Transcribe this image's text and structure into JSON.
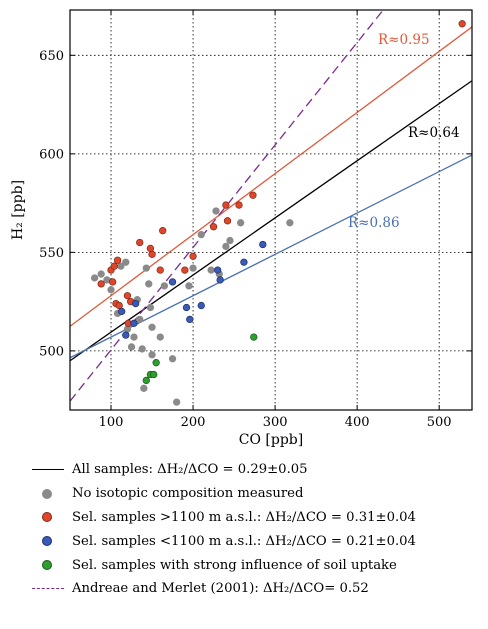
{
  "chart_data": {
    "type": "scatter",
    "xlabel": "CO [ppb]",
    "ylabel": "H₂ [ppb]",
    "xlim": [
      50,
      540
    ],
    "ylim": [
      470,
      673
    ],
    "xticks": [
      100,
      200,
      300,
      400,
      500
    ],
    "yticks": [
      500,
      550,
      600,
      650
    ],
    "grid": "dotted",
    "series": [
      {
        "name": "No isotopic composition measured",
        "color": "#8a8a8a",
        "points": [
          [
            80,
            537
          ],
          [
            88,
            539
          ],
          [
            95,
            536
          ],
          [
            100,
            531
          ],
          [
            108,
            519
          ],
          [
            112,
            543
          ],
          [
            118,
            545
          ],
          [
            120,
            511
          ],
          [
            125,
            502
          ],
          [
            128,
            507
          ],
          [
            132,
            526
          ],
          [
            135,
            516
          ],
          [
            138,
            501
          ],
          [
            140,
            481
          ],
          [
            143,
            542
          ],
          [
            146,
            534
          ],
          [
            148,
            522
          ],
          [
            150,
            498
          ],
          [
            152,
            488
          ],
          [
            160,
            507
          ],
          [
            165,
            533
          ],
          [
            180,
            474
          ],
          [
            195,
            533
          ],
          [
            200,
            542
          ],
          [
            210,
            559
          ],
          [
            222,
            541
          ],
          [
            228,
            571
          ],
          [
            232,
            539
          ],
          [
            240,
            553
          ],
          [
            245,
            556
          ],
          [
            258,
            565
          ],
          [
            318,
            565
          ],
          [
            175,
            496
          ],
          [
            150,
            512
          ]
        ]
      },
      {
        "name": "Sel. samples >1100 m a.s.l.: ΔH₂/ΔCO = 0.31±0.04",
        "color": "#e2462a",
        "points": [
          [
            88,
            534
          ],
          [
            100,
            541
          ],
          [
            102,
            535
          ],
          [
            104,
            543
          ],
          [
            106,
            524
          ],
          [
            108,
            546
          ],
          [
            110,
            523
          ],
          [
            120,
            528
          ],
          [
            121,
            514
          ],
          [
            124,
            525
          ],
          [
            135,
            555
          ],
          [
            148,
            552
          ],
          [
            150,
            549
          ],
          [
            160,
            541
          ],
          [
            163,
            561
          ],
          [
            190,
            541
          ],
          [
            200,
            548
          ],
          [
            225,
            563
          ],
          [
            240,
            574
          ],
          [
            242,
            566
          ],
          [
            256,
            574
          ],
          [
            273,
            579
          ],
          [
            528,
            666
          ]
        ]
      },
      {
        "name": "Sel. samples <1100 m a.s.l.: ΔH₂/ΔCO = 0.21±0.04",
        "color": "#3a5ab8",
        "points": [
          [
            113,
            520
          ],
          [
            118,
            508
          ],
          [
            128,
            514
          ],
          [
            130,
            524
          ],
          [
            175,
            535
          ],
          [
            192,
            522
          ],
          [
            196,
            516
          ],
          [
            210,
            523
          ],
          [
            230,
            541
          ],
          [
            233,
            536
          ],
          [
            262,
            545
          ],
          [
            285,
            554
          ]
        ]
      },
      {
        "name": "Sel. samples with strong influence of soil uptake",
        "color": "#2e9e2e",
        "points": [
          [
            143,
            485
          ],
          [
            148,
            488
          ],
          [
            152,
            488
          ],
          [
            155,
            494
          ],
          [
            274,
            507
          ]
        ]
      }
    ],
    "fits": [
      {
        "name": "All samples: ΔH₂/ΔCO = 0.29±0.05",
        "color": "#000000",
        "style": "solid",
        "slope": 0.29,
        "intercept": 480.5,
        "label": "R≈0.64"
      },
      {
        "name": "Sel. samples >1100 m a.s.l.",
        "color": "#e05a3a",
        "style": "solid",
        "slope": 0.31,
        "intercept": 497.0,
        "label": "R≈0.95"
      },
      {
        "name": "Sel. samples <1100 m a.s.l.",
        "color": "#4a6fb5",
        "style": "solid",
        "slope": 0.21,
        "intercept": 486.0,
        "label": "R≈0.86"
      },
      {
        "name": "Andreae and Merlet (2001): ΔH₂/ΔCO= 0.52",
        "color": "#7b2c8c",
        "style": "dashed",
        "slope": 0.52,
        "intercept": 448.5,
        "label": ""
      }
    ]
  },
  "legend": {
    "all_samples": "All samples: ΔH₂/ΔCO = 0.29±0.05",
    "no_isotopic": "No isotopic composition measured",
    "high": "Sel. samples >1100 m a.s.l.: ΔH₂/ΔCO = 0.31±0.04",
    "low": "Sel. samples <1100 m a.s.l.: ΔH₂/ΔCO = 0.21±0.04",
    "soil": "Sel. samples with strong influence of soil uptake",
    "andreae": "Andreae and Merlet (2001): ΔH₂/ΔCO= 0.52"
  },
  "colors": {
    "grey": "#8a8a8a",
    "red": "#e2462a",
    "blue": "#3a5ab8",
    "green": "#2e9e2e",
    "purple": "#7b2c8c"
  }
}
